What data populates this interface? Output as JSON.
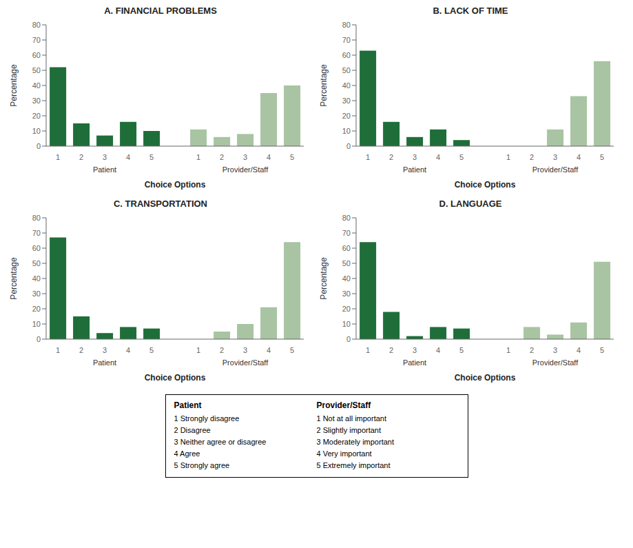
{
  "chart_data": [
    {
      "type": "bar",
      "title": "A. FINANCIAL PROBLEMS",
      "x_label": "Choice Options",
      "y_label": "Percentage",
      "categories": [
        "1",
        "2",
        "3",
        "4",
        "5",
        null,
        "1",
        "2",
        "3",
        "4",
        "5"
      ],
      "series": [
        {
          "name": "Patient",
          "color": "#1f6e3a",
          "values": [
            52,
            15,
            7,
            16,
            10,
            null,
            null,
            null,
            null,
            null,
            null
          ]
        },
        {
          "name": "Provider/Staff",
          "color": "#a8c4a2",
          "values": [
            null,
            null,
            null,
            null,
            null,
            null,
            11,
            6,
            8,
            35,
            40
          ]
        }
      ],
      "stacked": false,
      "ylim": [
        0,
        80
      ],
      "yticks": [
        0,
        10,
        20,
        30,
        40,
        50,
        60,
        70,
        80
      ],
      "grid": false
    },
    {
      "type": "bar",
      "title": "B. LACK OF TIME",
      "x_label": "Choice Options",
      "y_label": "Percentage",
      "categories": [
        "1",
        "2",
        "3",
        "4",
        "5",
        null,
        "1",
        "2",
        "3",
        "4",
        "5"
      ],
      "series": [
        {
          "name": "Patient",
          "color": "#1f6e3a",
          "values": [
            63,
            16,
            6,
            11,
            4,
            null,
            null,
            null,
            null,
            null,
            null
          ]
        },
        {
          "name": "Provider/Staff",
          "color": "#a8c4a2",
          "values": [
            null,
            null,
            null,
            null,
            null,
            null,
            0,
            0,
            11,
            33,
            56
          ]
        }
      ],
      "stacked": false,
      "ylim": [
        0,
        80
      ],
      "yticks": [
        0,
        10,
        20,
        30,
        40,
        50,
        60,
        70,
        80
      ],
      "grid": false
    },
    {
      "type": "bar",
      "title": "C. TRANSPORTATION",
      "x_label": "Choice Options",
      "y_label": "Percentage",
      "categories": [
        "1",
        "2",
        "3",
        "4",
        "5",
        null,
        "1",
        "2",
        "3",
        "4",
        "5"
      ],
      "series": [
        {
          "name": "Patient",
          "color": "#1f6e3a",
          "values": [
            67,
            15,
            4,
            8,
            7,
            null,
            null,
            null,
            null,
            null,
            null
          ]
        },
        {
          "name": "Provider/Staff",
          "color": "#a8c4a2",
          "values": [
            null,
            null,
            null,
            null,
            null,
            null,
            0,
            5,
            10,
            21,
            64
          ]
        }
      ],
      "stacked": false,
      "ylim": [
        0,
        80
      ],
      "yticks": [
        0,
        10,
        20,
        30,
        40,
        50,
        60,
        70,
        80
      ],
      "grid": false
    },
    {
      "type": "bar",
      "title": "D. LANGUAGE",
      "x_label": "Choice Options",
      "y_label": "Percentage",
      "categories": [
        "1",
        "2",
        "3",
        "4",
        "5",
        null,
        "1",
        "2",
        "3",
        "4",
        "5"
      ],
      "series": [
        {
          "name": "Patient",
          "color": "#1f6e3a",
          "values": [
            64,
            18,
            2,
            8,
            7,
            null,
            null,
            null,
            null,
            null,
            null
          ]
        },
        {
          "name": "Provider/Staff",
          "color": "#a8c4a2",
          "values": [
            null,
            null,
            null,
            null,
            null,
            null,
            0,
            8,
            3,
            11,
            51
          ]
        }
      ],
      "stacked": false,
      "ylim": [
        0,
        80
      ],
      "yticks": [
        0,
        10,
        20,
        30,
        40,
        50,
        60,
        70,
        80
      ],
      "grid": false
    }
  ],
  "annotations": [
    {
      "title": "Patient",
      "items": [
        "1 Strongly disagree",
        "2 Disagree",
        "3 Neither agree or disagree",
        "4 Agree",
        "5 Strongly agree"
      ]
    },
    {
      "title": "Provider/Staff",
      "items": [
        "1 Not at all important",
        "2 Slightly important",
        "3 Moderately important",
        "4 Very important",
        "5 Extremely important"
      ]
    }
  ]
}
